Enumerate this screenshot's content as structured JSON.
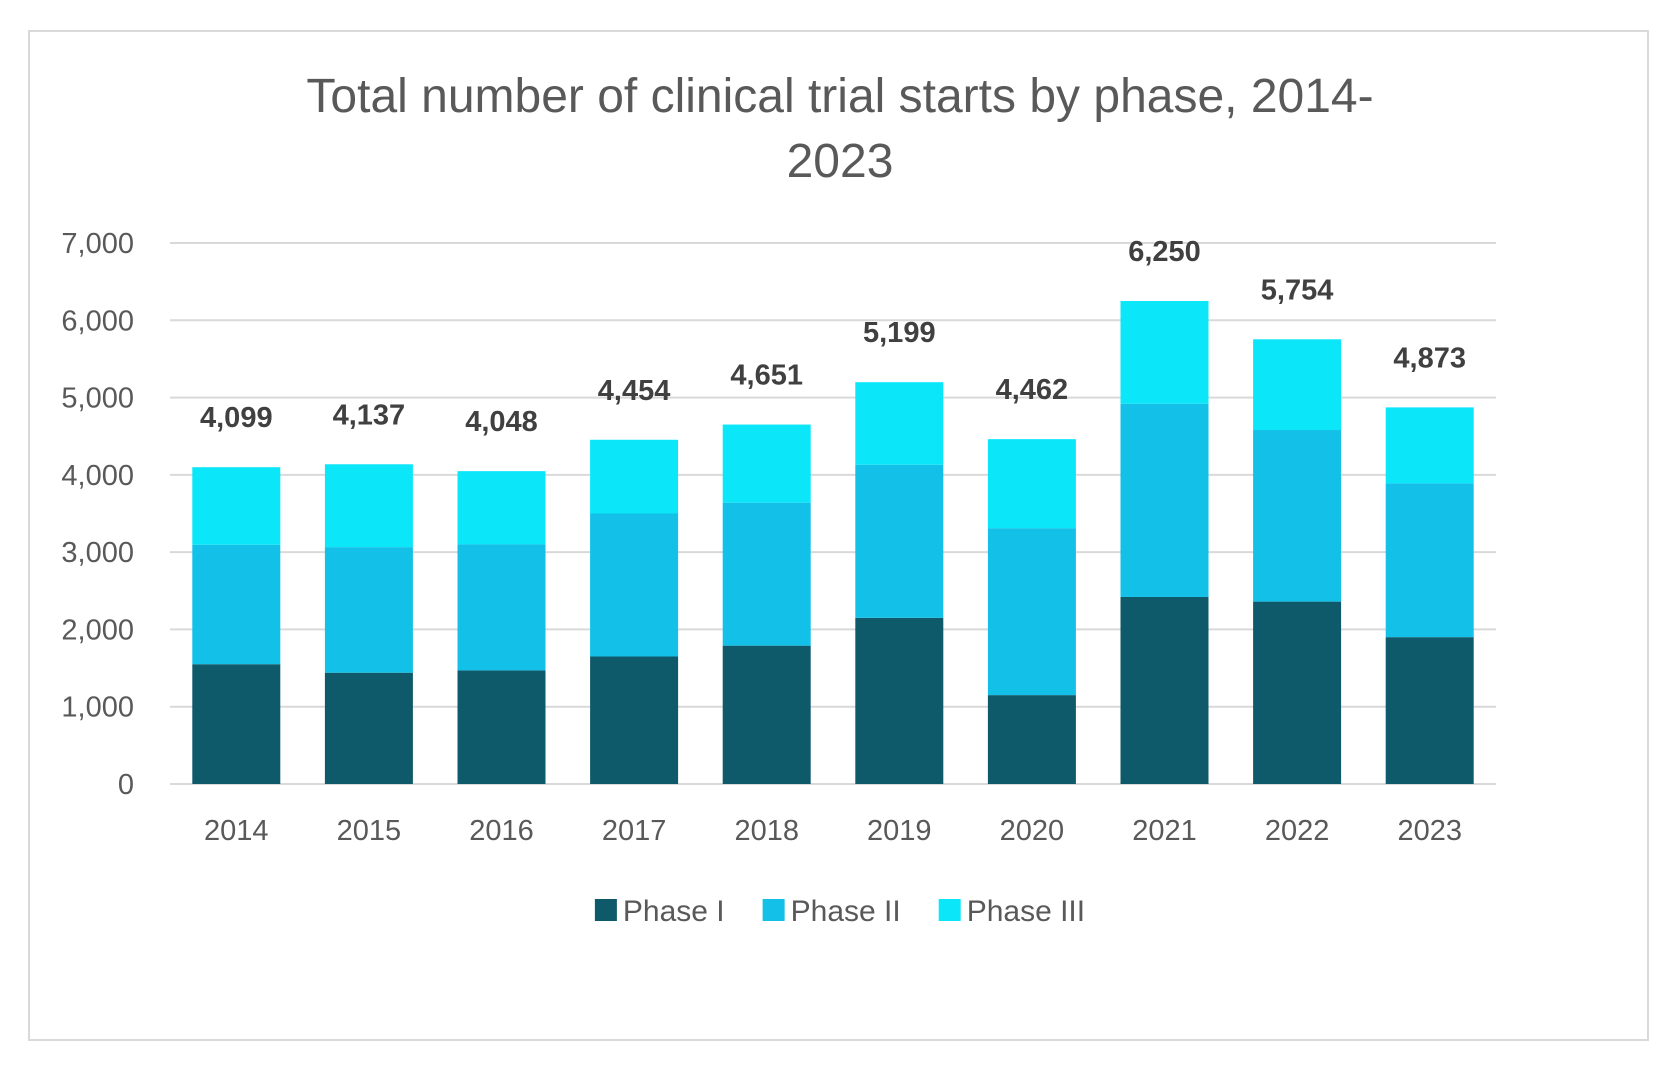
{
  "chart_data": {
    "type": "bar",
    "stacked": true,
    "title_lines": [
      "Total number of clinical trial starts by phase, 2014-",
      "2023"
    ],
    "categories": [
      "2014",
      "2015",
      "2016",
      "2017",
      "2018",
      "2019",
      "2020",
      "2021",
      "2022",
      "2023"
    ],
    "series": [
      {
        "name": "Phase I",
        "color": "#0e5a6a",
        "values": [
          1550,
          1440,
          1470,
          1650,
          1790,
          2150,
          1150,
          2420,
          2360,
          1900
        ]
      },
      {
        "name": "Phase II",
        "color": "#12c0e8",
        "values": [
          1545,
          1625,
          1630,
          1850,
          1850,
          1980,
          2160,
          2500,
          2220,
          1990
        ]
      },
      {
        "name": "Phase III",
        "color": "#0be6f8",
        "values": [
          1004,
          1072,
          948,
          954,
          1011,
          1069,
          1152,
          1330,
          1174,
          983
        ]
      }
    ],
    "totals": [
      4099,
      4137,
      4048,
      4454,
      4651,
      5199,
      4462,
      6250,
      5754,
      4873
    ],
    "total_labels": [
      "4,099",
      "4,137",
      "4,048",
      "4,454",
      "4,651",
      "5,199",
      "4,462",
      "6,250",
      "5,754",
      "4,873"
    ],
    "y_ticks": [
      0,
      1000,
      2000,
      3000,
      4000,
      5000,
      6000,
      7000
    ],
    "y_tick_labels": [
      "0",
      "1,000",
      "2,000",
      "3,000",
      "4,000",
      "5,000",
      "6,000",
      "7,000"
    ],
    "ylim": [
      0,
      7000
    ],
    "xlabel": "",
    "ylabel": "",
    "grid": true,
    "legend_position": "bottom"
  }
}
